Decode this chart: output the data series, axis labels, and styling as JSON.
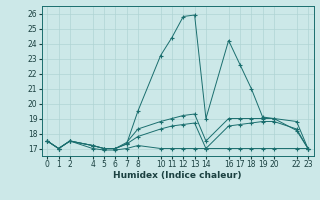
{
  "xlabel": "Humidex (Indice chaleur)",
  "background_color": "#cce8e8",
  "grid_color": "#b0d4d4",
  "line_color": "#1a6e6e",
  "xlim": [
    -0.5,
    23.5
  ],
  "ylim": [
    16.5,
    26.5
  ],
  "xticks": [
    0,
    1,
    2,
    4,
    5,
    6,
    7,
    8,
    10,
    11,
    12,
    13,
    14,
    16,
    17,
    18,
    19,
    20,
    22,
    23
  ],
  "yticks": [
    17,
    18,
    19,
    20,
    21,
    22,
    23,
    24,
    25,
    26
  ],
  "lines": [
    {
      "x": [
        0,
        1,
        2,
        4,
        5,
        6,
        7,
        8,
        10,
        11,
        12,
        13,
        14,
        16,
        17,
        18,
        19,
        20,
        22,
        23
      ],
      "y": [
        17.5,
        17.0,
        17.5,
        17.2,
        17.0,
        17.0,
        17.3,
        19.5,
        23.2,
        24.4,
        25.8,
        25.9,
        19.0,
        24.2,
        22.6,
        21.0,
        19.1,
        19.0,
        18.2,
        17.0
      ]
    },
    {
      "x": [
        0,
        1,
        2,
        4,
        5,
        6,
        7,
        8,
        10,
        11,
        12,
        13,
        14,
        16,
        17,
        18,
        19,
        20,
        22,
        23
      ],
      "y": [
        17.5,
        17.0,
        17.5,
        17.0,
        16.9,
        16.9,
        17.0,
        17.2,
        17.0,
        17.0,
        17.0,
        17.0,
        17.0,
        17.0,
        17.0,
        17.0,
        17.0,
        17.0,
        17.0,
        17.0
      ]
    },
    {
      "x": [
        0,
        1,
        2,
        4,
        5,
        6,
        7,
        8,
        10,
        11,
        12,
        13,
        14,
        16,
        17,
        18,
        19,
        20,
        22,
        23
      ],
      "y": [
        17.5,
        17.0,
        17.5,
        17.2,
        17.0,
        17.0,
        17.3,
        17.8,
        18.3,
        18.5,
        18.6,
        18.7,
        17.0,
        18.5,
        18.6,
        18.7,
        18.8,
        18.8,
        18.3,
        17.0
      ]
    },
    {
      "x": [
        0,
        1,
        2,
        4,
        5,
        6,
        7,
        8,
        10,
        11,
        12,
        13,
        14,
        16,
        17,
        18,
        19,
        20,
        22,
        23
      ],
      "y": [
        17.5,
        17.0,
        17.5,
        17.2,
        17.0,
        17.0,
        17.4,
        18.3,
        18.8,
        19.0,
        19.2,
        19.3,
        17.5,
        19.0,
        19.0,
        19.0,
        19.0,
        19.0,
        18.8,
        17.0
      ]
    }
  ]
}
